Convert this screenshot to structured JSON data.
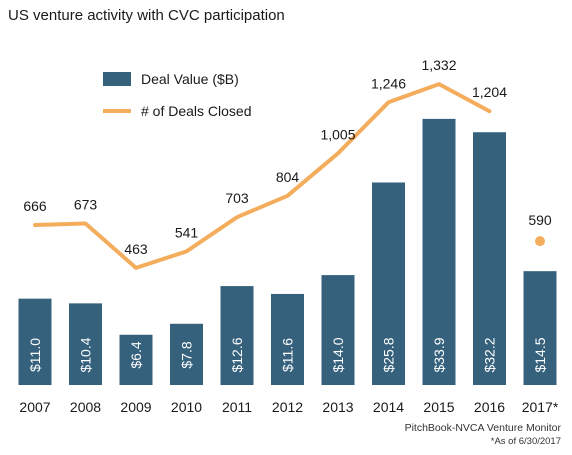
{
  "chart_data": {
    "type": "bar",
    "title": "US venture activity with CVC participation",
    "categories": [
      "2007",
      "2008",
      "2009",
      "2010",
      "2011",
      "2012",
      "2013",
      "2014",
      "2015",
      "2016",
      "2017*"
    ],
    "series": [
      {
        "name": "Deal Value ($B)",
        "type": "bar",
        "color": "#35617c",
        "values": [
          11.0,
          10.4,
          6.4,
          7.8,
          12.6,
          11.6,
          14.0,
          25.8,
          33.9,
          32.2,
          14.5
        ],
        "labels": [
          "$11.0",
          "$10.4",
          "$6.4",
          "$7.8",
          "$12.6",
          "$11.6",
          "$14.0",
          "$25.8",
          "$33.9",
          "$32.2",
          "$14.5"
        ]
      },
      {
        "name": "# of Deals Closed",
        "type": "line",
        "color": "#f3ad5c",
        "values": [
          666,
          673,
          463,
          541,
          703,
          804,
          1005,
          1246,
          1332,
          1204,
          590
        ],
        "labels": [
          "666",
          "673",
          "463",
          "541",
          "703",
          "804",
          "1,005",
          "1,246",
          "1,332",
          "1,204",
          "590"
        ],
        "note": "2017* value shown as a separate point, not connected to the line"
      }
    ],
    "legend_position": "top-left",
    "grid": false,
    "source": "PitchBook-NVCA Venture Monitor",
    "footnote": "*As of 6/30/2017"
  }
}
